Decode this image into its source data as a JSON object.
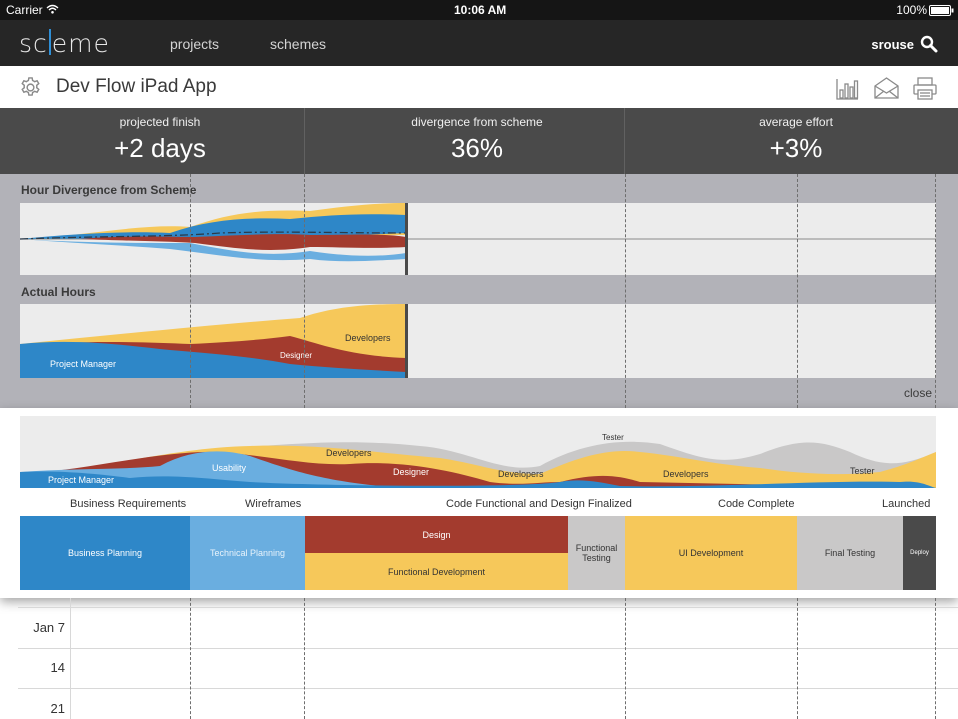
{
  "status_bar": {
    "carrier": "Carrier",
    "time": "10:06 AM",
    "battery": "100%"
  },
  "nav": {
    "logo": {
      "part1": "sc",
      "part2": "eme"
    },
    "links": [
      "projects",
      "schemes"
    ],
    "user": "srouse"
  },
  "project": {
    "title": "Dev Flow iPad App"
  },
  "stats": [
    {
      "label": "projected finish",
      "value": "+2 days"
    },
    {
      "label": "divergence from scheme",
      "value": "36%"
    },
    {
      "label": "average effort",
      "value": "+3%"
    }
  ],
  "analysis": {
    "divergence_title": "Hour Divergence from Scheme",
    "actual_title": "Actual Hours",
    "actual_labels": {
      "project_manager": "Project Manager",
      "designer": "Designer",
      "developers": "Developers"
    },
    "close_label": "close"
  },
  "timeline": {
    "stream_labels": {
      "project_manager": "Project Manager",
      "usability": "Usability",
      "developers_1": "Developers",
      "designer": "Designer",
      "developers_2": "Developers",
      "tester_1": "Tester",
      "developers_3": "Developers",
      "tester_2": "Tester"
    },
    "milestones": [
      "Business Requirements",
      "Wireframes",
      "Code Functional and Design Finalized",
      "Code Complete",
      "Launched"
    ],
    "phases": {
      "business_planning": "Business Planning",
      "technical_planning": "Technical Planning",
      "design": "Design",
      "functional_development": "Functional Development",
      "functional_testing": "Functional Testing",
      "ui_development": "UI Development",
      "final_testing": "Final Testing",
      "deploy": "Deploy"
    }
  },
  "calendar": {
    "rows": [
      "Jan 7",
      "14",
      "21"
    ]
  },
  "colors": {
    "blue": "#2e87c8",
    "light_blue": "#6aaee0",
    "red": "#a33b2e",
    "yellow": "#f6c85a",
    "grey": "#c9c8c8",
    "dark": "#4a4a4a",
    "accent": "#2f8fd6"
  },
  "icons": [
    "wifi-icon",
    "battery-icon",
    "search-icon",
    "gear-icon",
    "chart-icon",
    "mail-icon",
    "print-icon"
  ]
}
